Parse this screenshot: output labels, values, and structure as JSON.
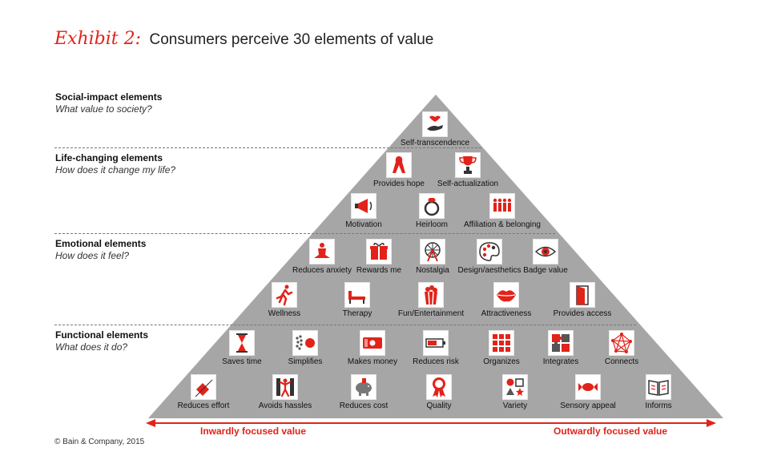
{
  "header": {
    "exhibit": "Exhibit 2:",
    "title": "Consumers perceive 30 elements of value"
  },
  "levels": [
    {
      "name": "Social-impact elements",
      "question": "What value to society?"
    },
    {
      "name": "Life-changing elements",
      "question": "How does it change my life?"
    },
    {
      "name": "Emotional elements",
      "question": "How does it feel?"
    },
    {
      "name": "Functional elements",
      "question": "What does it do?"
    }
  ],
  "elements": {
    "self_transcendence": {
      "label": "Self-transcendence",
      "icon": "giving-hand-icon"
    },
    "provides_hope": {
      "label": "Provides hope",
      "icon": "ribbon-icon"
    },
    "self_actualization": {
      "label": "Self-actualization",
      "icon": "trophy-icon"
    },
    "motivation": {
      "label": "Motivation",
      "icon": "megaphone-icon"
    },
    "heirloom": {
      "label": "Heirloom",
      "icon": "ring-icon"
    },
    "affiliation": {
      "label": "Affiliation & belonging",
      "icon": "group-icon"
    },
    "reduces_anxiety": {
      "label": "Reduces anxiety",
      "icon": "meditation-icon"
    },
    "rewards_me": {
      "label": "Rewards me",
      "icon": "gift-icon"
    },
    "nostalgia": {
      "label": "Nostalgia",
      "icon": "ferris-wheel-icon"
    },
    "design_aesthetics": {
      "label": "Design/aesthetics",
      "icon": "palette-icon"
    },
    "badge_value": {
      "label": "Badge value",
      "icon": "eye-icon"
    },
    "wellness": {
      "label": "Wellness",
      "icon": "runner-icon"
    },
    "therapy": {
      "label": "Therapy",
      "icon": "couch-icon"
    },
    "fun_entertainment": {
      "label": "Fun/Entertainment",
      "icon": "popcorn-icon"
    },
    "attractiveness": {
      "label": "Attractiveness",
      "icon": "lips-icon"
    },
    "provides_access": {
      "label": "Provides access",
      "icon": "door-icon"
    },
    "saves_time": {
      "label": "Saves time",
      "icon": "hourglass-icon"
    },
    "simplifies": {
      "label": "Simplifies",
      "icon": "dots-to-circle-icon"
    },
    "makes_money": {
      "label": "Makes money",
      "icon": "money-icon"
    },
    "reduces_risk": {
      "label": "Reduces risk",
      "icon": "battery-icon"
    },
    "organizes": {
      "label": "Organizes",
      "icon": "grid-icon"
    },
    "integrates": {
      "label": "Integrates",
      "icon": "puzzle-icon"
    },
    "connects": {
      "label": "Connects",
      "icon": "network-icon"
    },
    "reduces_effort": {
      "label": "Reduces effort",
      "icon": "box-icon"
    },
    "avoids_hassles": {
      "label": "Avoids hassles",
      "icon": "dancer-icon"
    },
    "reduces_cost": {
      "label": "Reduces cost",
      "icon": "piggy-bank-icon"
    },
    "quality": {
      "label": "Quality",
      "icon": "award-icon"
    },
    "variety": {
      "label": "Variety",
      "icon": "shapes-icon"
    },
    "sensory_appeal": {
      "label": "Sensory appeal",
      "icon": "candy-icon"
    },
    "informs": {
      "label": "Informs",
      "icon": "book-icon"
    }
  },
  "axis": {
    "inward": "Inwardly focused value",
    "outward": "Outwardly focused value"
  },
  "footer": {
    "copyright": "© Bain & Company, 2015"
  },
  "colors": {
    "pyramid": "#a6a6a6",
    "accent": "#e2231a",
    "text": "#222222"
  }
}
